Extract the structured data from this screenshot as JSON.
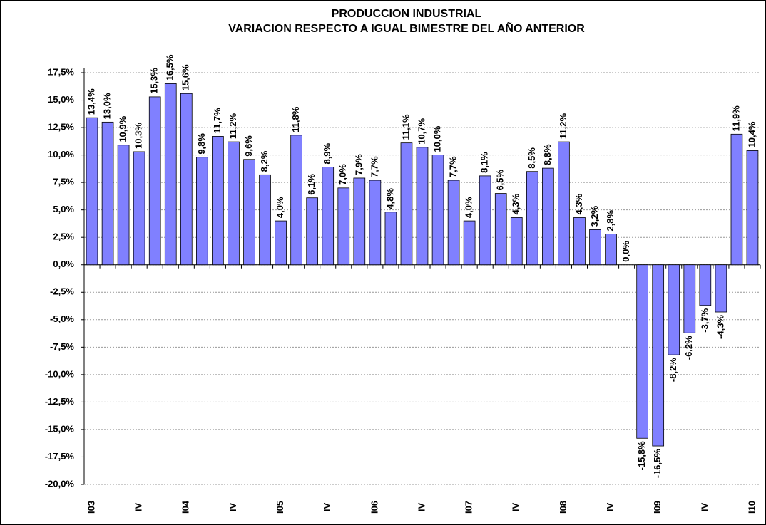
{
  "chart_data": {
    "type": "bar",
    "title": "PRODUCCION INDUSTRIAL",
    "subtitle": "VARIACION RESPECTO A IGUAL BIMESTRE DEL AÑO ANTERIOR",
    "categories": [
      "I03",
      null,
      null,
      "IV",
      null,
      null,
      "I04",
      null,
      null,
      "IV",
      null,
      null,
      "I05",
      null,
      null,
      "IV",
      null,
      null,
      "I06",
      null,
      null,
      "IV",
      null,
      null,
      "I07",
      null,
      null,
      "IV",
      null,
      null,
      "I08",
      null,
      null,
      "IV",
      null,
      null,
      "I09",
      null,
      null,
      "IV",
      null,
      null,
      "I10"
    ],
    "values": [
      13.4,
      13.0,
      10.9,
      10.3,
      15.3,
      16.5,
      15.6,
      9.8,
      11.7,
      11.2,
      9.6,
      8.2,
      4.0,
      11.8,
      6.1,
      8.9,
      7.0,
      7.9,
      7.7,
      4.8,
      11.1,
      10.7,
      10.0,
      7.7,
      4.0,
      8.1,
      6.5,
      4.3,
      8.5,
      8.8,
      11.2,
      4.3,
      3.2,
      2.8,
      0.0,
      -15.8,
      -16.5,
      -8.2,
      -6.2,
      -3.7,
      -4.3,
      11.9,
      10.4
    ],
    "value_labels": [
      "13,4%",
      "13,0%",
      "10,9%",
      "10,3%",
      "15,3%",
      "16,5%",
      "15,6%",
      "9,8%",
      "11,7%",
      "11,2%",
      "9,6%",
      "8,2%",
      "4,0%",
      "11,8%",
      "6,1%",
      "8,9%",
      "7,0%",
      "7,9%",
      "7,7%",
      "4,8%",
      "11,1%",
      "10,7%",
      "10,0%",
      "7,7%",
      "4,0%",
      "8,1%",
      "6,5%",
      "4,3%",
      "8,5%",
      "8,8%",
      "11,2%",
      "4,3%",
      "3,2%",
      "2,8%",
      "0,0%",
      "-15,8%",
      "-16,5%",
      "-8,2%",
      "-6,2%",
      "-3,7%",
      "-4,3%",
      "11,9%",
      "10,4%"
    ],
    "color": "#8080ff",
    "ylim": [
      -20,
      17.5
    ],
    "yticks": [
      {
        "value": -20,
        "label": "-20,0%"
      },
      {
        "value": -17.5,
        "label": "-17,5%"
      },
      {
        "value": -15,
        "label": "-15,0%"
      },
      {
        "value": -12.5,
        "label": "-12,5%"
      },
      {
        "value": -10,
        "label": "-10,0%"
      },
      {
        "value": -7.5,
        "label": "-7,5%"
      },
      {
        "value": -5,
        "label": "-5,0%"
      },
      {
        "value": -2.5,
        "label": "-2,5%"
      },
      {
        "value": 0,
        "label": "0,0%"
      },
      {
        "value": 2.5,
        "label": "2,5%"
      },
      {
        "value": 5,
        "label": "5,0%"
      },
      {
        "value": 7.5,
        "label": "7,5%"
      },
      {
        "value": 10,
        "label": "10,0%"
      },
      {
        "value": 12.5,
        "label": "12,5%"
      },
      {
        "value": 15,
        "label": "15,0%"
      },
      {
        "value": 17.5,
        "label": "17,5%"
      }
    ],
    "grid": true
  }
}
